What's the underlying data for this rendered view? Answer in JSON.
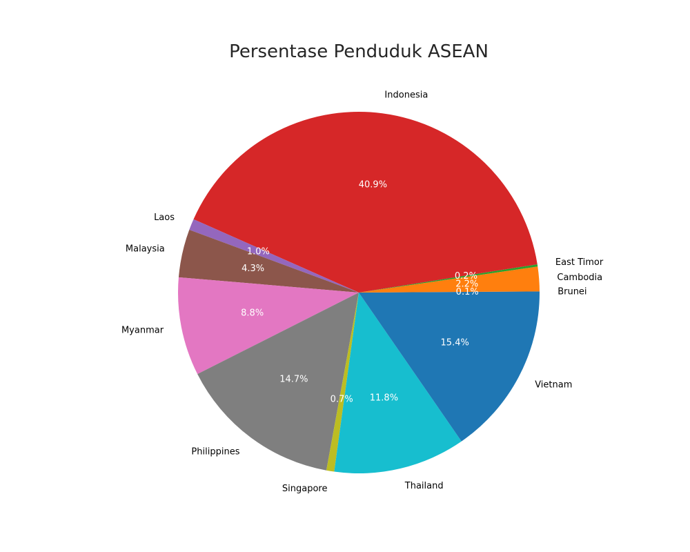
{
  "chart_data": {
    "type": "pie",
    "title": "Persentase Penduduk ASEAN",
    "start_angle_deg": 0,
    "direction": "counterclockwise",
    "legend": "none",
    "slices": [
      {
        "label": "Brunei",
        "value": 0.1,
        "pct_text": "0.1%",
        "color": "#1f77b4"
      },
      {
        "label": "Cambodia",
        "value": 2.2,
        "pct_text": "2.2%",
        "color": "#ff7f0e"
      },
      {
        "label": "East Timor",
        "value": 0.2,
        "pct_text": "0.2%",
        "color": "#2ca02c"
      },
      {
        "label": "Indonesia",
        "value": 40.9,
        "pct_text": "40.9%",
        "color": "#d62728"
      },
      {
        "label": "Laos",
        "value": 1.0,
        "pct_text": "1.0%",
        "color": "#9467bd"
      },
      {
        "label": "Malaysia",
        "value": 4.3,
        "pct_text": "4.3%",
        "color": "#8c564b"
      },
      {
        "label": "Myanmar",
        "value": 8.8,
        "pct_text": "8.8%",
        "color": "#e377c2"
      },
      {
        "label": "Philippines",
        "value": 14.7,
        "pct_text": "14.7%",
        "color": "#7f7f7f"
      },
      {
        "label": "Singapore",
        "value": 0.7,
        "pct_text": "0.7%",
        "color": "#bcbd22"
      },
      {
        "label": "Thailand",
        "value": 11.8,
        "pct_text": "11.8%",
        "color": "#17becf"
      },
      {
        "label": "Vietnam",
        "value": 15.4,
        "pct_text": "15.4%",
        "color": "#1f77b4"
      }
    ]
  }
}
